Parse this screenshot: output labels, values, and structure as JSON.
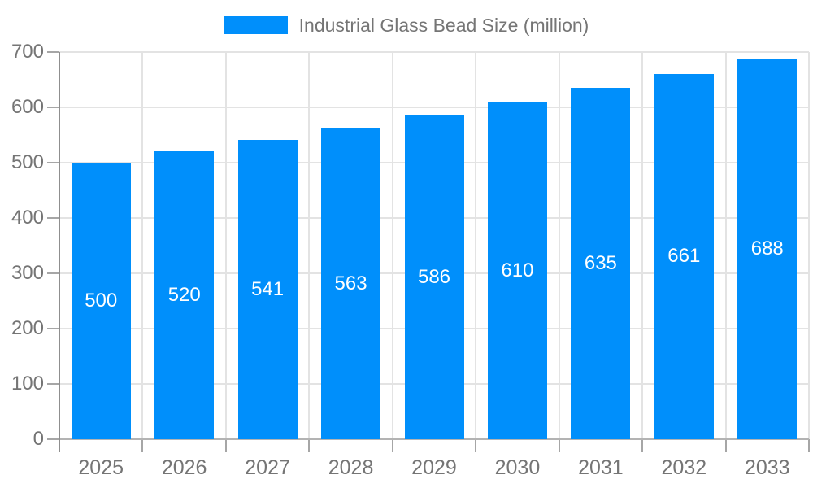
{
  "chart_data": {
    "type": "bar",
    "title": "Industrial Glass Bead Size (million)",
    "categories": [
      "2025",
      "2026",
      "2027",
      "2028",
      "2029",
      "2030",
      "2031",
      "2032",
      "2033"
    ],
    "series": [
      {
        "name": "Industrial Glass Bead Size (million)",
        "values": [
          500,
          520,
          541,
          563,
          586,
          610,
          635,
          661,
          688
        ]
      }
    ],
    "xlabel": "",
    "ylabel": "",
    "ylim": [
      0,
      700
    ],
    "y_ticks": [
      0,
      100,
      200,
      300,
      400,
      500,
      600,
      700
    ],
    "grid": true,
    "legend_position": "top",
    "data_labels_position": "inside-middle",
    "colors": {
      "bar": "#008FFB",
      "data_label_text": "#FFFFFF",
      "axis_text": "#757575",
      "gridline": "#E3E3E3",
      "y_axis_line": "#8F8F8F",
      "x_axis_line": "#B3B3B3",
      "tick": "#A6A6A6",
      "background": "#FFFFFF"
    }
  },
  "legend": {
    "items": [
      {
        "label": "Industrial Glass Bead Size (million)",
        "swatch_color": "#008FFB"
      }
    ]
  }
}
